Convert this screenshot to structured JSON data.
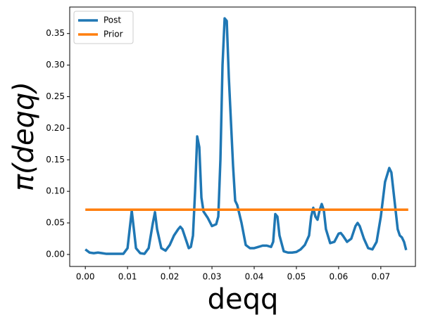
{
  "chart_data": {
    "type": "line",
    "xlabel": "deqq",
    "ylabel": "π(deqq)",
    "xlim": [
      -0.0037,
      0.0782
    ],
    "ylim": [
      -0.019,
      0.392
    ],
    "xticks": [
      {
        "value": 0,
        "label": "0.00"
      },
      {
        "value": 0.01,
        "label": "0.01"
      },
      {
        "value": 0.02,
        "label": "0.02"
      },
      {
        "value": 0.03,
        "label": "0.03"
      },
      {
        "value": 0.04,
        "label": "0.04"
      },
      {
        "value": 0.05,
        "label": "0.05"
      },
      {
        "value": 0.06,
        "label": "0.06"
      },
      {
        "value": 0.07,
        "label": "0.07"
      }
    ],
    "yticks": [
      {
        "value": 0,
        "label": "0.00"
      },
      {
        "value": 0.05,
        "label": "0.05"
      },
      {
        "value": 0.1,
        "label": "0.10"
      },
      {
        "value": 0.15,
        "label": "0.15"
      },
      {
        "value": 0.2,
        "label": "0.20"
      },
      {
        "value": 0.25,
        "label": "0.25"
      },
      {
        "value": 0.3,
        "label": "0.30"
      },
      {
        "value": 0.35,
        "label": "0.35"
      }
    ],
    "legend": "upper left",
    "series": [
      {
        "name": "Post",
        "color": "#1f77b4",
        "x": [
          0,
          0.001,
          0.002,
          0.003,
          0.004,
          0.005,
          0.006,
          0.007,
          0.008,
          0.009,
          0.01,
          0.0105,
          0.011,
          0.0115,
          0.012,
          0.013,
          0.014,
          0.015,
          0.016,
          0.0165,
          0.017,
          0.018,
          0.019,
          0.02,
          0.021,
          0.022,
          0.0225,
          0.023,
          0.024,
          0.0245,
          0.025,
          0.0255,
          0.026,
          0.0265,
          0.027,
          0.0275,
          0.028,
          0.029,
          0.03,
          0.031,
          0.0315,
          0.032,
          0.0325,
          0.033,
          0.0335,
          0.034,
          0.035,
          0.0355,
          0.036,
          0.037,
          0.038,
          0.039,
          0.04,
          0.041,
          0.042,
          0.043,
          0.044,
          0.0445,
          0.045,
          0.0455,
          0.046,
          0.047,
          0.048,
          0.049,
          0.05,
          0.051,
          0.052,
          0.053,
          0.0535,
          0.054,
          0.0545,
          0.055,
          0.0555,
          0.056,
          0.0565,
          0.057,
          0.058,
          0.059,
          0.06,
          0.0605,
          0.061,
          0.062,
          0.063,
          0.064,
          0.0645,
          0.065,
          0.066,
          0.067,
          0.068,
          0.069,
          0.07,
          0.071,
          0.072,
          0.0725,
          0.073,
          0.074,
          0.0745,
          0.075,
          0.0755,
          0.076
        ],
        "values": [
          0.008,
          0.003,
          0.002,
          0.003,
          0.002,
          0.001,
          0.001,
          0.001,
          0.001,
          0.001,
          0.01,
          0.04,
          0.069,
          0.04,
          0.01,
          0.002,
          0.001,
          0.01,
          0.05,
          0.067,
          0.04,
          0.01,
          0.006,
          0.015,
          0.03,
          0.04,
          0.044,
          0.04,
          0.02,
          0.01,
          0.012,
          0.03,
          0.1,
          0.187,
          0.17,
          0.09,
          0.068,
          0.058,
          0.045,
          0.048,
          0.06,
          0.15,
          0.3,
          0.374,
          0.37,
          0.28,
          0.14,
          0.085,
          0.078,
          0.05,
          0.015,
          0.01,
          0.01,
          0.012,
          0.014,
          0.014,
          0.012,
          0.02,
          0.064,
          0.06,
          0.03,
          0.005,
          0.003,
          0.003,
          0.004,
          0.008,
          0.015,
          0.03,
          0.06,
          0.074,
          0.06,
          0.055,
          0.07,
          0.08,
          0.07,
          0.04,
          0.018,
          0.02,
          0.033,
          0.034,
          0.03,
          0.02,
          0.025,
          0.045,
          0.05,
          0.045,
          0.025,
          0.01,
          0.008,
          0.02,
          0.06,
          0.115,
          0.137,
          0.13,
          0.1,
          0.04,
          0.03,
          0.027,
          0.02,
          0.007
        ]
      },
      {
        "name": "Prior",
        "color": "#ff7f0e",
        "x": [
          0,
          0.0765
        ],
        "values": [
          0.071,
          0.071
        ]
      }
    ]
  }
}
